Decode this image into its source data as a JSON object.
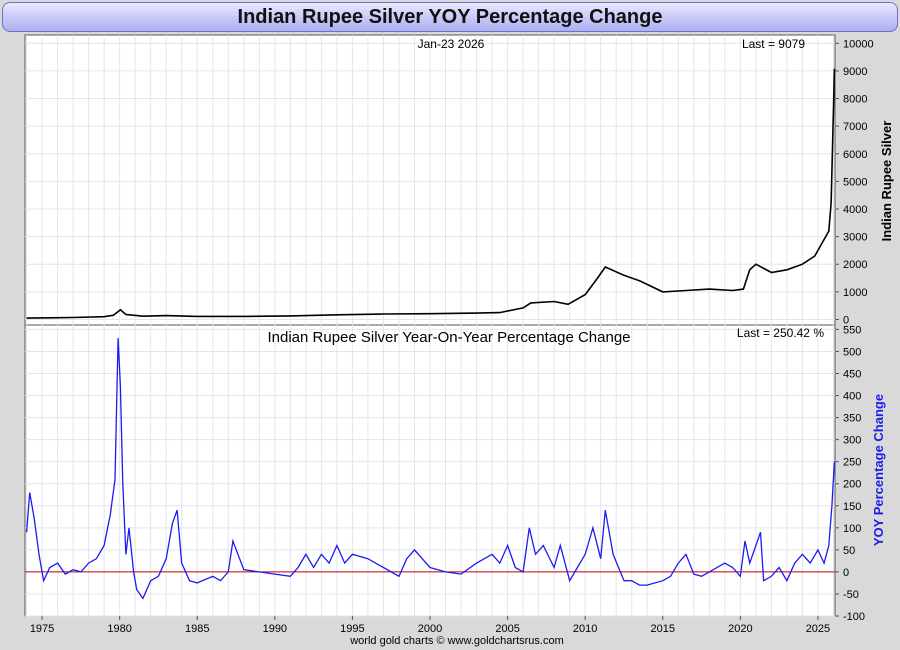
{
  "page": {
    "title": "Indian Rupee Silver YOY Percentage Change",
    "date_label": "Jan-23  2026",
    "footer": "world gold charts © www.goldchartsrus.com"
  },
  "colors": {
    "price_line": "#000000",
    "yoy_line": "#1c1cf0",
    "zero_line": "#cc0000",
    "grid": "#e4e4ef",
    "title_bg": "#c7c7f7"
  },
  "chart_data": [
    {
      "type": "line",
      "name": "price-panel",
      "ylabel": "Indian Rupee Silver",
      "last_label": "Last = 9079",
      "ylim": [
        -200,
        10300
      ],
      "yticks": [
        0,
        1000,
        2000,
        3000,
        4000,
        5000,
        6000,
        7000,
        8000,
        9000,
        10000
      ],
      "xlim": [
        1973.9,
        2026.1
      ],
      "series": [
        {
          "name": "Indian Rupee Silver",
          "x": [
            1974.0,
            1975.5,
            1977.0,
            1979.0,
            1979.6,
            1980.05,
            1980.4,
            1981.5,
            1983.0,
            1985.0,
            1988.0,
            1991.0,
            1994.0,
            1997.0,
            2000.0,
            2003.0,
            2004.5,
            2006.0,
            2006.5,
            2008.0,
            2008.9,
            2010.0,
            2010.8,
            2011.3,
            2012.5,
            2013.5,
            2015.0,
            2016.5,
            2018.0,
            2019.5,
            2020.2,
            2020.6,
            2021.0,
            2022.0,
            2023.0,
            2024.0,
            2024.8,
            2025.3,
            2025.7,
            2025.85,
            2026.0,
            2026.06
          ],
          "y": [
            50,
            60,
            70,
            100,
            150,
            350,
            180,
            120,
            140,
            110,
            110,
            130,
            170,
            200,
            210,
            230,
            250,
            420,
            600,
            650,
            550,
            900,
            1500,
            1900,
            1600,
            1400,
            1000,
            1050,
            1100,
            1050,
            1100,
            1800,
            2000,
            1700,
            1800,
            2000,
            2300,
            2800,
            3200,
            4200,
            7500,
            9079
          ]
        }
      ]
    },
    {
      "type": "line",
      "name": "yoy-panel",
      "title": "Indian Rupee Silver Year-On-Year Percentage Change",
      "ylabel": "YOY Percentage Change",
      "last_label": "Last =  250.42 %",
      "ylim": [
        -100,
        560
      ],
      "yticks": [
        -100,
        -50,
        0,
        50,
        100,
        150,
        200,
        250,
        300,
        350,
        400,
        450,
        500,
        550
      ],
      "xlim": [
        1973.9,
        2026.1
      ],
      "xticks": [
        "1975",
        "1980",
        "1985",
        "1990",
        "1995",
        "2000",
        "2005",
        "2010",
        "2015",
        "2020",
        "2025"
      ],
      "series": [
        {
          "name": "YOY Percentage Change",
          "x": [
            1974.0,
            1974.2,
            1974.5,
            1974.8,
            1975.1,
            1975.5,
            1976.0,
            1976.5,
            1977.0,
            1977.5,
            1978.0,
            1978.5,
            1979.0,
            1979.4,
            1979.7,
            1979.9,
            1980.05,
            1980.2,
            1980.4,
            1980.6,
            1980.9,
            1981.1,
            1981.5,
            1982.0,
            1982.5,
            1983.0,
            1983.4,
            1983.7,
            1984.0,
            1984.5,
            1985.0,
            1986.0,
            1986.5,
            1987.0,
            1987.3,
            1988.0,
            1989.0,
            1990.0,
            1991.0,
            1991.5,
            1992.0,
            1992.5,
            1993.0,
            1993.5,
            1994.0,
            1994.5,
            1995.0,
            1996.0,
            1997.0,
            1998.0,
            1998.5,
            1999.0,
            2000.0,
            2001.0,
            2002.0,
            2003.0,
            2004.0,
            2004.5,
            2005.0,
            2005.5,
            2006.0,
            2006.4,
            2006.8,
            2007.3,
            2008.0,
            2008.4,
            2009.0,
            2009.5,
            2010.0,
            2010.5,
            2011.0,
            2011.3,
            2011.8,
            2012.5,
            2013.0,
            2013.5,
            2014.0,
            2015.0,
            2015.5,
            2016.0,
            2016.5,
            2017.0,
            2017.5,
            2018.0,
            2019.0,
            2019.5,
            2020.0,
            2020.3,
            2020.6,
            2021.0,
            2021.3,
            2021.5,
            2022.0,
            2022.5,
            2023.0,
            2023.5,
            2024.0,
            2024.5,
            2025.0,
            2025.4,
            2025.7,
            2025.9,
            2026.06
          ],
          "y": [
            90,
            180,
            120,
            40,
            -20,
            10,
            20,
            -5,
            5,
            0,
            20,
            30,
            60,
            130,
            210,
            530,
            420,
            200,
            40,
            100,
            0,
            -40,
            -60,
            -20,
            -10,
            30,
            110,
            140,
            20,
            -20,
            -25,
            -10,
            -20,
            0,
            70,
            5,
            0,
            -5,
            -10,
            10,
            40,
            10,
            40,
            20,
            60,
            20,
            40,
            30,
            10,
            -10,
            30,
            50,
            10,
            0,
            -5,
            20,
            40,
            20,
            60,
            10,
            0,
            100,
            40,
            60,
            10,
            60,
            -20,
            10,
            40,
            100,
            30,
            140,
            40,
            -20,
            -20,
            -30,
            -30,
            -20,
            -10,
            20,
            40,
            -5,
            -10,
            0,
            20,
            10,
            -10,
            70,
            20,
            60,
            90,
            -20,
            -10,
            10,
            -20,
            20,
            40,
            20,
            50,
            20,
            60,
            150,
            250.42
          ]
        }
      ]
    }
  ]
}
